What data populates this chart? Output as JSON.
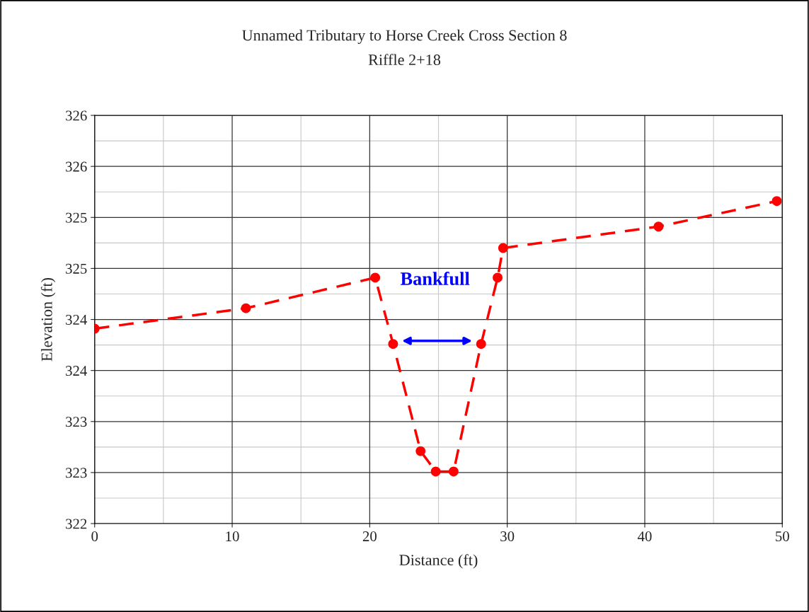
{
  "chart_data": {
    "type": "line",
    "title": "Unnamed Tributary to Horse Creek Cross Section 8",
    "subtitle": "Riffle 2+18",
    "xlabel": "Distance (ft)",
    "ylabel": "Elevation (ft)",
    "series": [
      {
        "color": "#ff0000",
        "x": [
          0,
          11.0,
          20.4,
          21.7,
          23.7,
          24.8,
          26.1,
          28.1,
          29.3,
          29.7,
          41.0,
          49.6
        ],
        "values": [
          323.91,
          324.11,
          324.41,
          323.76,
          322.71,
          322.51,
          322.51,
          323.76,
          324.41,
          324.7,
          324.91,
          325.16
        ]
      }
    ],
    "xlim": [
      0,
      50
    ],
    "xticks": [
      0,
      10,
      20,
      30,
      40,
      50
    ],
    "ylim": [
      322,
      326
    ],
    "yticks": [
      322,
      {
        "value": 322.5,
        "label": "323"
      },
      323,
      {
        "value": 323.5,
        "label": "324"
      },
      324,
      {
        "value": 324.5,
        "label": "325"
      },
      325,
      {
        "value": 325.5,
        "label": "326"
      },
      326
    ],
    "grid": true,
    "marker": "circle",
    "line_style": "dashed",
    "legend": false,
    "annotations": [
      "Bankfull"
    ]
  }
}
